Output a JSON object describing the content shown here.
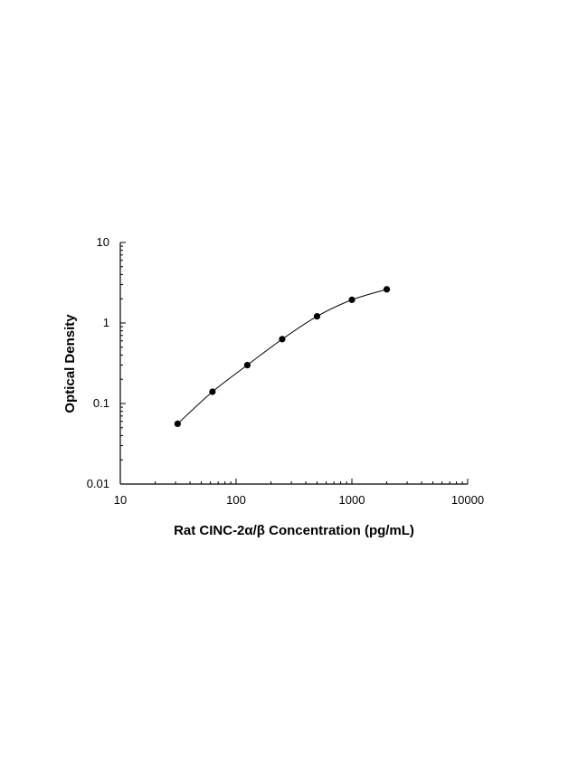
{
  "chart_data": {
    "type": "scatter",
    "title": "",
    "xlabel": "Rat CINC-2α/β Concentration (pg/mL)",
    "ylabel": "Optical Density",
    "x_scale": "log",
    "y_scale": "log",
    "xlim": [
      10,
      10000
    ],
    "ylim": [
      0.01,
      10
    ],
    "x_tick_labels": [
      "10",
      "100",
      "1000",
      "10000"
    ],
    "y_tick_labels": [
      "0.01",
      "0.1",
      "1",
      "10"
    ],
    "grid": false,
    "legend": "none",
    "fit_line": true,
    "series": [
      {
        "x": [
          31.25,
          62.5,
          125,
          250,
          500,
          1000,
          2000
        ],
        "y": [
          0.056,
          0.14,
          0.3,
          0.63,
          1.21,
          1.94,
          2.62
        ]
      }
    ]
  }
}
